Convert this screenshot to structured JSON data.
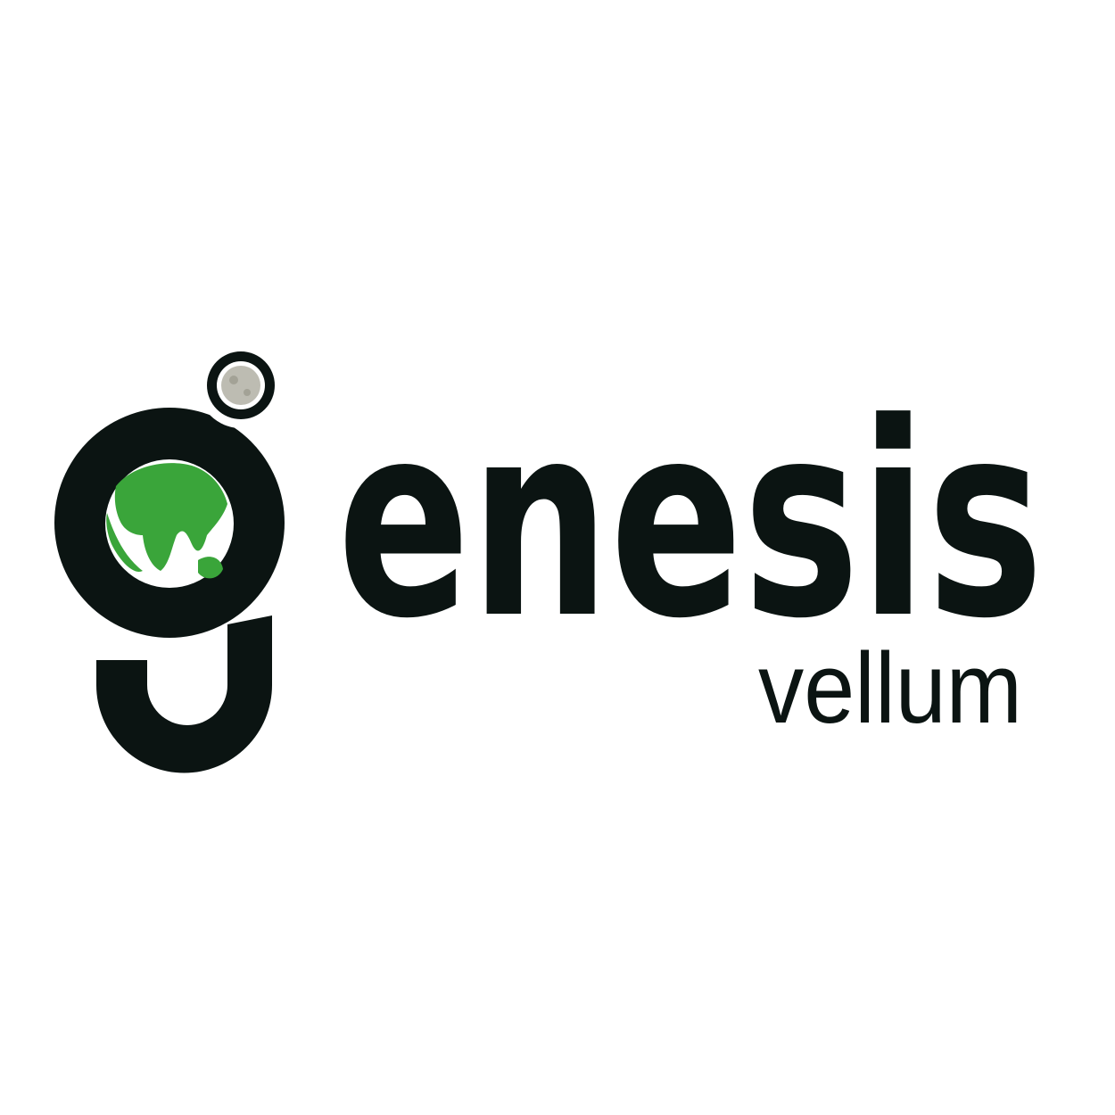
{
  "logo": {
    "wordmark": "enesis",
    "tagline": "vellum"
  }
}
